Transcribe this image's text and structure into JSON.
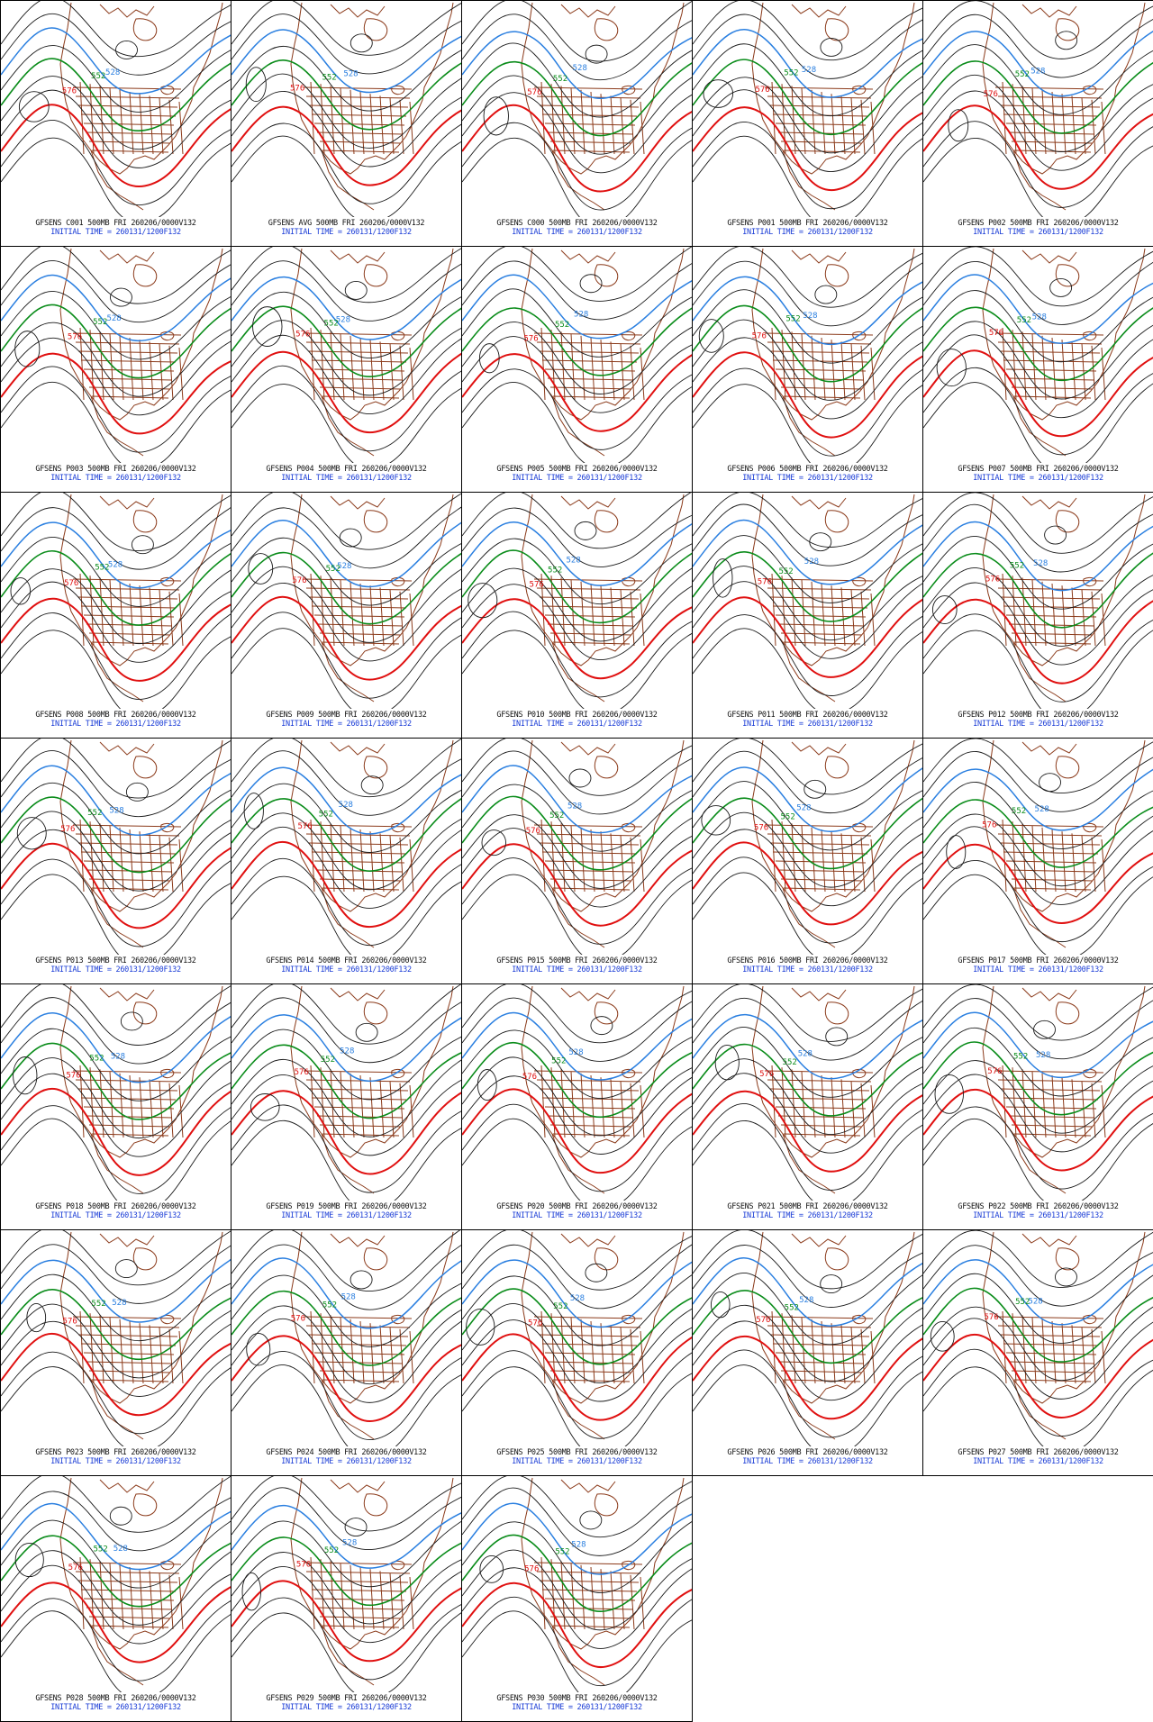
{
  "layout": {
    "columns": 5,
    "rows": 7
  },
  "colors": {
    "contour_black": "#1a1a1a",
    "contour_blue": "#2a7fe0",
    "contour_green": "#0a8c1a",
    "contour_red": "#e01010",
    "geography": "#8b3a1a",
    "caption_line1": "#111111",
    "caption_line2": "#1a3cd6"
  },
  "contour_labels": {
    "blue": "528",
    "green": "552",
    "red": "576"
  },
  "initial_time": "INITIAL TIME = 260131/1200F132",
  "panels": [
    {
      "member": "C001",
      "line1": "GFSENS C001 500MB FRI 260206/0000V132",
      "line2": "INITIAL TIME = 260131/1200F132"
    },
    {
      "member": "AVG",
      "line1": "GFSENS AVG 500MB FRI 260206/0000V132",
      "line2": "INITIAL TIME = 260131/1200F132"
    },
    {
      "member": "C000",
      "line1": "GFSENS C000 500MB FRI 260206/0000V132",
      "line2": "INITIAL TIME = 260131/1200F132"
    },
    {
      "member": "P001",
      "line1": "GFSENS P001 500MB FRI 260206/0000V132",
      "line2": "INITIAL TIME = 260131/1200F132"
    },
    {
      "member": "P002",
      "line1": "GFSENS P002 500MB FRI 260206/0000V132",
      "line2": "INITIAL TIME = 260131/1200F132"
    },
    {
      "member": "P003",
      "line1": "GFSENS P003 500MB FRI 260206/0000V132",
      "line2": "INITIAL TIME = 260131/1200F132"
    },
    {
      "member": "P004",
      "line1": "GFSENS P004 500MB FRI 260206/0000V132",
      "line2": "INITIAL TIME = 260131/1200F132"
    },
    {
      "member": "P005",
      "line1": "GFSENS P005 500MB FRI 260206/0000V132",
      "line2": "INITIAL TIME = 260131/1200F132"
    },
    {
      "member": "P006",
      "line1": "GFSENS P006 500MB FRI 260206/0000V132",
      "line2": "INITIAL TIME = 260131/1200F132"
    },
    {
      "member": "P007",
      "line1": "GFSENS P007 500MB FRI 260206/0000V132",
      "line2": "INITIAL TIME = 260131/1200F132"
    },
    {
      "member": "P008",
      "line1": "GFSENS P008 500MB FRI 260206/0000V132",
      "line2": "INITIAL TIME = 260131/1200F132"
    },
    {
      "member": "P009",
      "line1": "GFSENS P009 500MB FRI 260206/0000V132",
      "line2": "INITIAL TIME = 260131/1200F132"
    },
    {
      "member": "P010",
      "line1": "GFSENS P010 500MB FRI 260206/0000V132",
      "line2": "INITIAL TIME = 260131/1200F132"
    },
    {
      "member": "P011",
      "line1": "GFSENS P011 500MB FRI 260206/0000V132",
      "line2": "INITIAL TIME = 260131/1200F132"
    },
    {
      "member": "P012",
      "line1": "GFSENS P012 500MB FRI 260206/0000V132",
      "line2": "INITIAL TIME = 260131/1200F132"
    },
    {
      "member": "P013",
      "line1": "GFSENS P013 500MB FRI 260206/0000V132",
      "line2": "INITIAL TIME = 260131/1200F132"
    },
    {
      "member": "P014",
      "line1": "GFSENS P014 500MB FRI 260206/0000V132",
      "line2": "INITIAL TIME = 260131/1200F132"
    },
    {
      "member": "P015",
      "line1": "GFSENS P015 500MB FRI 260206/0000V132",
      "line2": "INITIAL TIME = 260131/1200F132"
    },
    {
      "member": "P016",
      "line1": "GFSENS P016 500MB FRI 260206/0000V132",
      "line2": "INITIAL TIME = 260131/1200F132"
    },
    {
      "member": "P017",
      "line1": "GFSENS P017 500MB FRI 260206/0000V132",
      "line2": "INITIAL TIME = 260131/1200F132"
    },
    {
      "member": "P018",
      "line1": "GFSENS P018 500MB FRI 260206/0000V132",
      "line2": "INITIAL TIME = 260131/1200F132"
    },
    {
      "member": "P019",
      "line1": "GFSENS P019 500MB FRI 260206/0000V132",
      "line2": "INITIAL TIME = 260131/1200F132"
    },
    {
      "member": "P020",
      "line1": "GFSENS P020 500MB FRI 260206/0000V132",
      "line2": "INITIAL TIME = 260131/1200F132"
    },
    {
      "member": "P021",
      "line1": "GFSENS P021 500MB FRI 260206/0000V132",
      "line2": "INITIAL TIME = 260131/1200F132"
    },
    {
      "member": "P022",
      "line1": "GFSENS P022 500MB FRI 260206/0000V132",
      "line2": "INITIAL TIME = 260131/1200F132"
    },
    {
      "member": "P023",
      "line1": "GFSENS P023 500MB FRI 260206/0000V132",
      "line2": "INITIAL TIME = 260131/1200F132"
    },
    {
      "member": "P024",
      "line1": "GFSENS P024 500MB FRI 260206/0000V132",
      "line2": "INITIAL TIME = 260131/1200F132"
    },
    {
      "member": "P025",
      "line1": "GFSENS P025 500MB FRI 260206/0000V132",
      "line2": "INITIAL TIME = 260131/1200F132"
    },
    {
      "member": "P026",
      "line1": "GFSENS P026 500MB FRI 260206/0000V132",
      "line2": "INITIAL TIME = 260131/1200F132"
    },
    {
      "member": "P027",
      "line1": "GFSENS P027 500MB FRI 260206/0000V132",
      "line2": "INITIAL TIME = 260131/1200F132"
    },
    {
      "member": "P028",
      "line1": "GFSENS P028 500MB FRI 260206/0000V132",
      "line2": "INITIAL TIME = 260131/1200F132"
    },
    {
      "member": "P029",
      "line1": "GFSENS P029 500MB FRI 260206/0000V132",
      "line2": "INITIAL TIME = 260131/1200F132"
    },
    {
      "member": "P030",
      "line1": "GFSENS P030 500MB FRI 260206/0000V132",
      "line2": "INITIAL TIME = 260131/1200F132"
    }
  ]
}
